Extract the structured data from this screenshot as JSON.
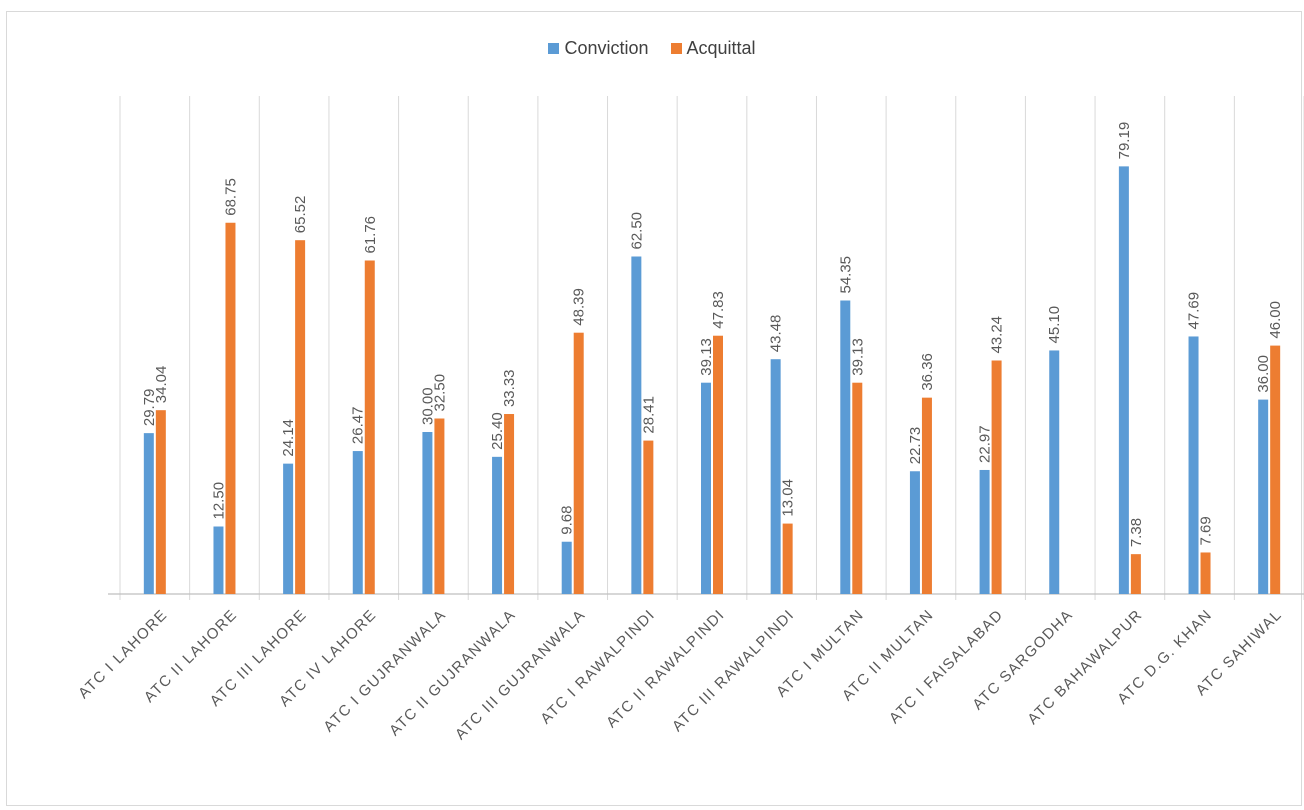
{
  "chart_data": {
    "type": "bar",
    "title": "",
    "xlabel": "",
    "ylabel": "",
    "ylim": [
      0,
      85
    ],
    "grid": "vertical category separators",
    "legend_position": "top",
    "categories": [
      "ATC I LAHORE",
      "ATC II LAHORE",
      "ATC III LAHORE",
      "ATC IV LAHORE",
      "ATC I  GUJRANWALA",
      "ATC  II GUJRANWALA",
      "ATC III GUJRANWALA",
      "ATC I RAWALPINDI",
      "ATC II RAWALPINDI",
      "ATC III RAWALPINDI",
      "ATC I MULTAN",
      "ATC II MULTAN",
      "ATC I FAISALABAD",
      "ATC SARGODHA",
      "ATC BAHAWALPUR",
      "ATC D.G. KHAN",
      "ATC SAHIWAL"
    ],
    "series": [
      {
        "name": "Conviction",
        "color": "#5b9bd5",
        "values": [
          29.79,
          12.5,
          24.14,
          26.47,
          30.0,
          25.4,
          9.68,
          62.5,
          39.13,
          43.48,
          54.35,
          22.73,
          22.97,
          45.1,
          79.19,
          47.69,
          36.0
        ],
        "labels": [
          "29.79",
          "12.50",
          "24.14",
          "26.47",
          "30.00",
          "25.40",
          "9.68",
          "62.50",
          "39.13",
          "43.48",
          "54.35",
          "22.73",
          "22.97",
          "45.10",
          "79.19",
          "47.69",
          "36.00"
        ]
      },
      {
        "name": "Acquittal",
        "color": "#ed7d31",
        "values": [
          34.04,
          68.75,
          65.52,
          61.76,
          32.5,
          33.33,
          48.39,
          28.41,
          47.83,
          13.04,
          39.13,
          36.36,
          43.24,
          0,
          7.38,
          7.69,
          46.0
        ],
        "labels": [
          "34.04",
          "68.75",
          "65.52",
          "61.76",
          "32.50",
          "33.33",
          "48.39",
          "28.41",
          "47.83",
          "13.04",
          "39.13",
          "36.36",
          "43.24",
          "",
          "7.38",
          "7.69",
          "46.00"
        ]
      }
    ]
  }
}
